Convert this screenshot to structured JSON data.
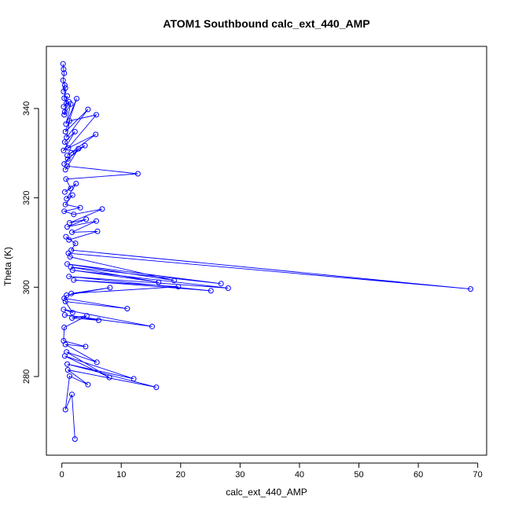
{
  "chart_data": {
    "type": "line",
    "title": "ATOM1 Southbound calc_ext_440_AMP",
    "xlabel": "calc_ext_440_AMP",
    "ylabel": "Theta (K)",
    "xlim": [
      -2.6,
      71.5
    ],
    "ylim": [
      262.4,
      353.9
    ],
    "x_ticks": [
      0,
      10,
      20,
      30,
      40,
      50,
      60,
      70
    ],
    "y_ticks": [
      280,
      300,
      320,
      340
    ],
    "grid": false,
    "legend": "none",
    "marker": "open-circle",
    "colors": {
      "series": "#0000ff",
      "axis": "#000000"
    },
    "series": [
      {
        "x": [
          0.2,
          0.3,
          0.4,
          0.2,
          0.5,
          0.3,
          0.6,
          0.4,
          0.8,
          0.3,
          1.2,
          0.5,
          0.9,
          0.4,
          1.5,
          0.7,
          2.5,
          0.6,
          4.4,
          0.8,
          1.3,
          5.8,
          1.1,
          0.5,
          2.2,
          0.3,
          5.7,
          0.9,
          1.6,
          3.9,
          1.0,
          0.4,
          2.8,
          0.6,
          0.9,
          12.8,
          0.7,
          1.5,
          0.5,
          2.4,
          0.8,
          1.8,
          0.6,
          3.1,
          0.4,
          2.0,
          6.8,
          1.3,
          4.1,
          0.9,
          5.8,
          1.7,
          6.0,
          1.2,
          0.7,
          2.3,
          1.6,
          68.8,
          1.1,
          1.4,
          18.9,
          0.9,
          26.8,
          1.5,
          16.3,
          1.8,
          28.0,
          1.2,
          25.1,
          2.0,
          19.6,
          1.6,
          8.1,
          0.8,
          0.4,
          11.0,
          0.6,
          1.8,
          0.3,
          15.2,
          0.5,
          6.2,
          1.7,
          4.2,
          0.4,
          0.3,
          4.0,
          0.6,
          5.9,
          0.8,
          8.0,
          0.5,
          12.1,
          0.9,
          15.9,
          1.0,
          4.4,
          1.3,
          0.6,
          1.7,
          2.2
        ],
        "y": [
          350.0,
          348.8,
          347.9,
          346.3,
          345.2,
          343.8,
          344.6,
          342.3,
          341.2,
          340.4,
          341.5,
          339.2,
          342.8,
          338.6,
          341.0,
          336.5,
          342.2,
          334.8,
          339.8,
          333.5,
          337.2,
          338.6,
          331.2,
          332.5,
          334.8,
          330.6,
          334.2,
          329.5,
          330.1,
          331.7,
          328.7,
          327.6,
          331.0,
          326.3,
          327.1,
          325.4,
          324.2,
          322.1,
          321.3,
          323.2,
          319.8,
          320.6,
          318.5,
          317.8,
          317.0,
          316.3,
          317.5,
          314.4,
          315.2,
          313.5,
          314.8,
          312.3,
          312.5,
          310.6,
          311.3,
          309.8,
          308.3,
          299.6,
          307.6,
          306.8,
          301.5,
          305.2,
          300.8,
          304.5,
          301.1,
          303.8,
          299.8,
          302.4,
          299.2,
          301.6,
          300.1,
          298.6,
          299.9,
          298.2,
          297.5,
          295.2,
          296.8,
          294.3,
          295.0,
          291.2,
          293.8,
          292.6,
          293.1,
          293.6,
          291.0,
          288.0,
          286.7,
          287.2,
          283.2,
          285.5,
          279.8,
          284.6,
          279.5,
          282.8,
          277.6,
          281.5,
          278.2,
          280.1,
          272.6,
          276.0,
          266.0
        ]
      }
    ]
  }
}
